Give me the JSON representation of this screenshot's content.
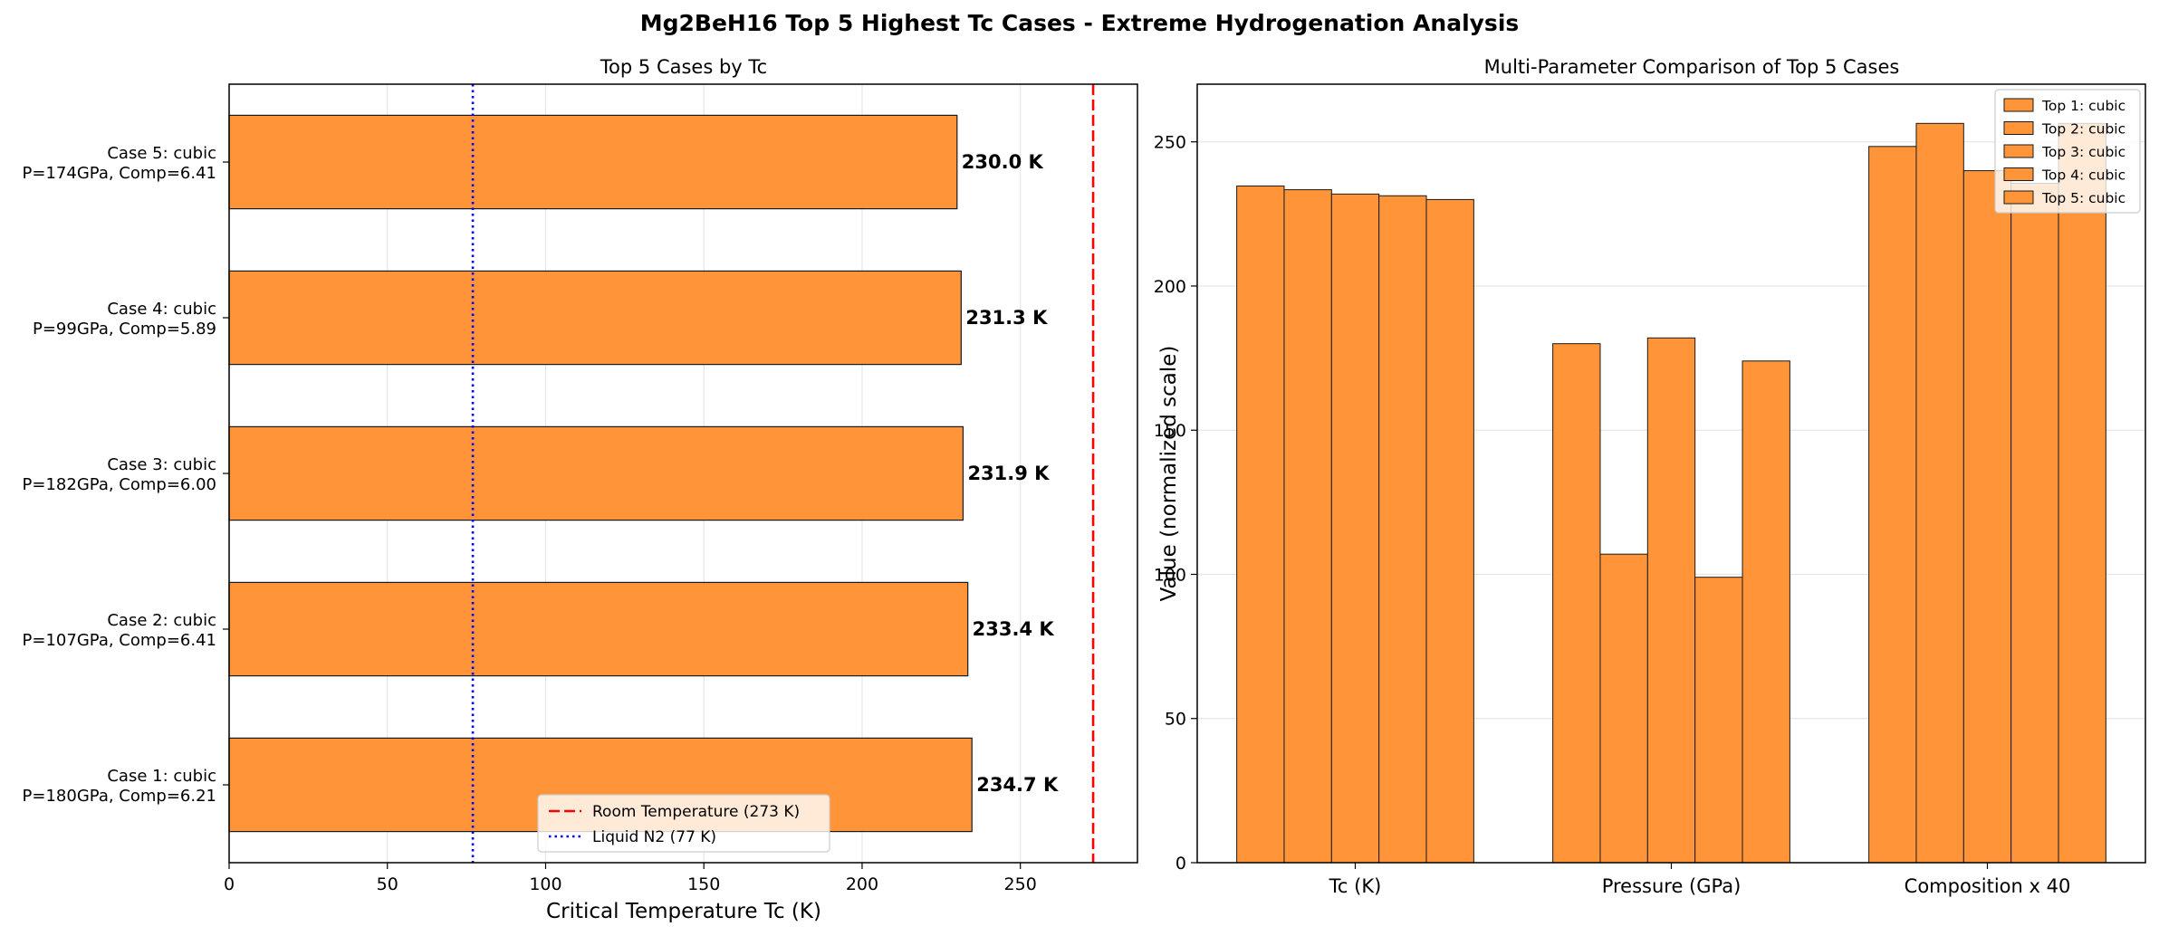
{
  "suptitle": "Mg2BeH16 Top 5 Highest Tc Cases - Extreme Hydrogenation Analysis",
  "colors": {
    "bar": "#ff9538",
    "edge": "#1a1a1a",
    "room_temp": "#ff0000",
    "liquid_n2": "#0000ff",
    "grid": "#e6e6e6"
  },
  "chart_data": [
    {
      "type": "bar",
      "orientation": "horizontal",
      "title": "Top 5 Cases by Tc",
      "xlabel": "Critical Temperature Tc (K)",
      "ylabel": "",
      "xlim": [
        0,
        287
      ],
      "xticks": [
        0,
        50,
        100,
        150,
        200,
        250
      ],
      "grid": "x",
      "categories": [
        [
          "Case 1: cubic",
          "P=180GPa, Comp=6.21"
        ],
        [
          "Case 2: cubic",
          "P=107GPa, Comp=6.41"
        ],
        [
          "Case 3: cubic",
          "P=182GPa, Comp=6.00"
        ],
        [
          "Case 4: cubic",
          "P=99GPa, Comp=5.89"
        ],
        [
          "Case 5: cubic",
          "P=174GPa, Comp=6.41"
        ]
      ],
      "values": [
        234.7,
        233.4,
        231.9,
        231.3,
        230.0
      ],
      "value_labels": [
        "234.7 K",
        "233.4 K",
        "231.9 K",
        "231.3 K",
        "230.0 K"
      ],
      "reference_lines": [
        {
          "name": "Room Temperature (273 K)",
          "value": 273,
          "style": "dashed",
          "color": "#ff0000"
        },
        {
          "name": "Liquid N2 (77 K)",
          "value": 77,
          "style": "dotted",
          "color": "#0000ff"
        }
      ],
      "legend_position": "lower-center"
    },
    {
      "type": "bar",
      "orientation": "vertical",
      "title": "Multi-Parameter Comparison of Top 5 Cases",
      "xlabel": "",
      "ylabel": "Value (normalized scale)",
      "ylim": [
        0,
        270
      ],
      "yticks": [
        0,
        50,
        100,
        150,
        200,
        250
      ],
      "grid": "y",
      "categories": [
        "Tc (K)",
        "Pressure (GPa)",
        "Composition x 40"
      ],
      "series": [
        {
          "name": "Top 1: cubic",
          "values": [
            234.7,
            180,
            248.4
          ]
        },
        {
          "name": "Top 2: cubic",
          "values": [
            233.4,
            107,
            256.4
          ]
        },
        {
          "name": "Top 3: cubic",
          "values": [
            231.9,
            182,
            240.0
          ]
        },
        {
          "name": "Top 4: cubic",
          "values": [
            231.3,
            99,
            235.6
          ]
        },
        {
          "name": "Top 5: cubic",
          "values": [
            230.0,
            174,
            256.4
          ]
        }
      ],
      "legend_position": "top-right"
    }
  ]
}
